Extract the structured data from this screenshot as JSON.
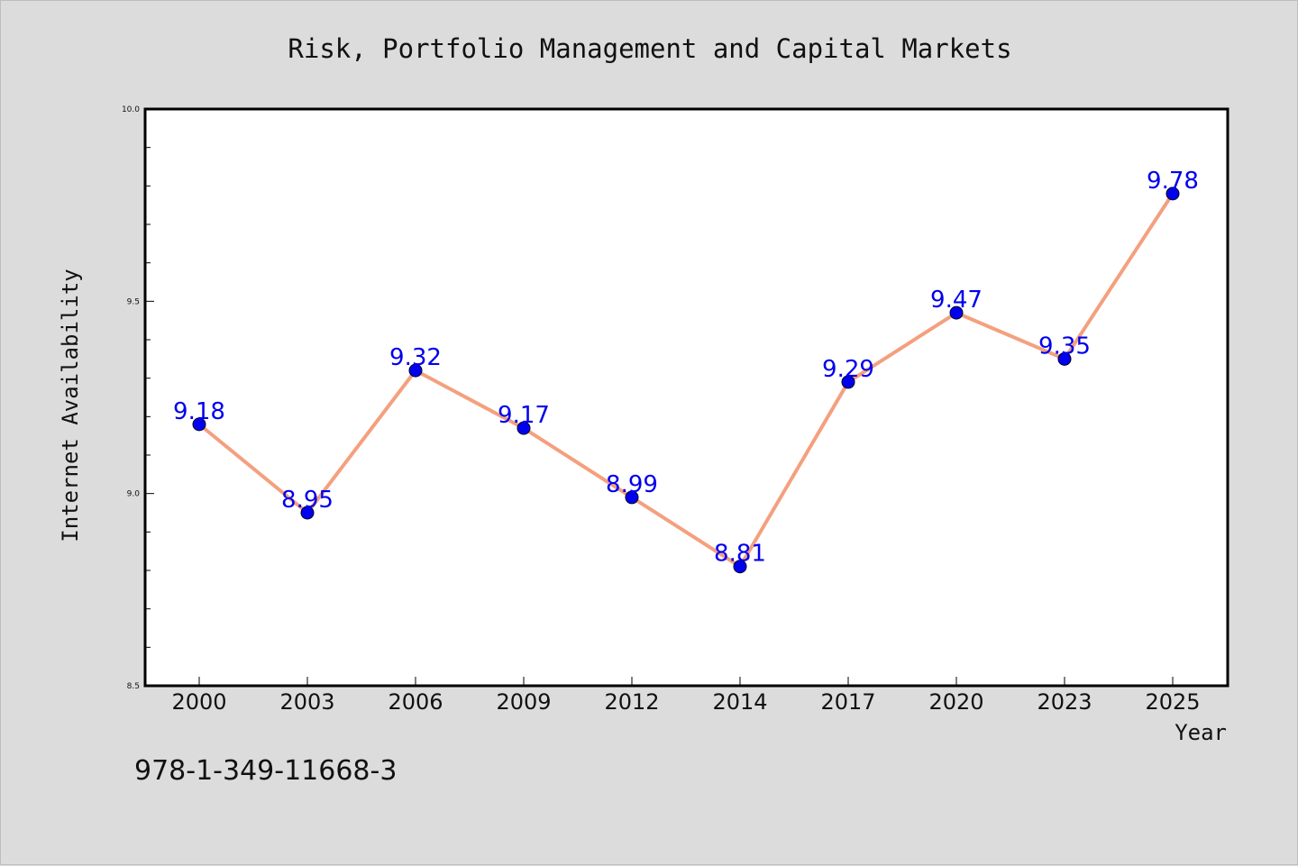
{
  "chart_data": {
    "type": "line",
    "title": "Risk, Portfolio Management and Capital Markets",
    "xlabel": "Year",
    "ylabel": "Internet Availability",
    "categories": [
      "2000",
      "2003",
      "2006",
      "2009",
      "2012",
      "2014",
      "2017",
      "2020",
      "2023",
      "2025"
    ],
    "series": [
      {
        "values": [
          9.18,
          8.95,
          9.32,
          9.17,
          8.99,
          8.81,
          9.29,
          9.47,
          9.35,
          9.78
        ]
      }
    ],
    "data_labels": [
      "9.18",
      "8.95",
      "9.32",
      "9.17",
      "8.99",
      "8.81",
      "9.29",
      "9.47",
      "9.35",
      "9.78"
    ],
    "ylim": [
      8.5,
      10.0
    ],
    "yticks": [
      "8.5",
      "9.0",
      "9.5",
      "10.0"
    ],
    "grid": false,
    "line_color": "#f4a07e",
    "marker_color": "#0000ee",
    "label_color": "#0000ee"
  },
  "footer": {
    "isbn": "978-1-349-11668-3"
  }
}
